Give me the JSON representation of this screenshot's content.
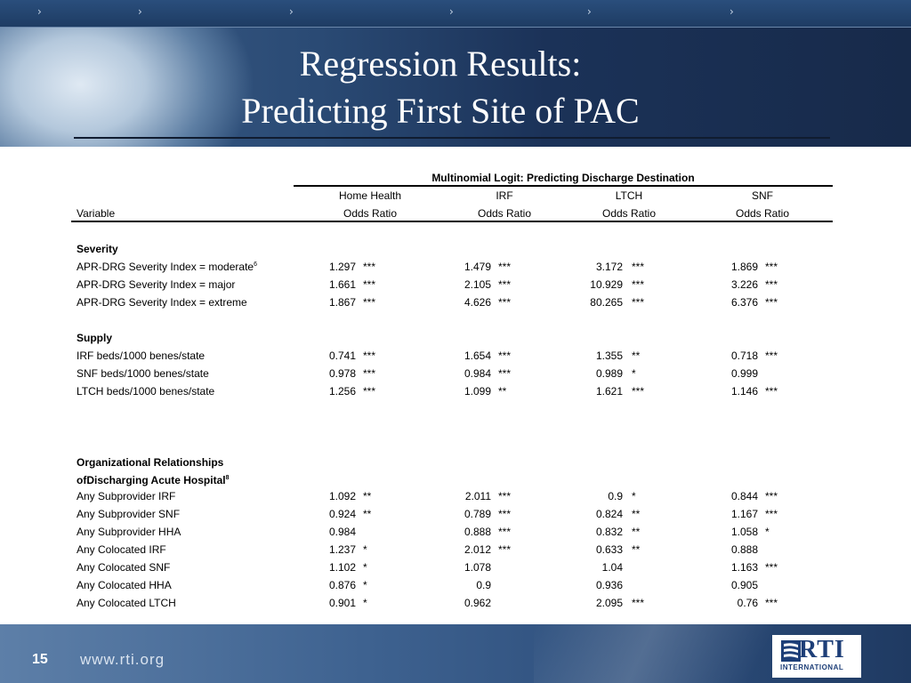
{
  "slide": {
    "title_line1": "Regression Results:",
    "title_line2": "Predicting First Site of PAC",
    "page_number": "15",
    "url": "www.rti.org"
  },
  "logo": {
    "name": "RTI",
    "sub": "INTERNATIONAL",
    "colors": {
      "brand": "#1e3f78"
    }
  },
  "nav": {
    "chevron_count": 6,
    "icon": "chevron-right-icon"
  },
  "table": {
    "top_header": "Multinomial Logit: Predicting Discharge Destination",
    "columns": [
      "Home Health",
      "IRF",
      "LTCH",
      "SNF"
    ],
    "variable_header": "Variable",
    "measure_header": "Odds Ratio",
    "sections": [
      {
        "heading": "Severity",
        "heading2": "",
        "heading2_sup": "",
        "rows": [
          {
            "label": "APR-DRG Severity Index = moderate",
            "sup": "6",
            "cells": [
              [
                "1.297",
                "***"
              ],
              [
                "1.479",
                "***"
              ],
              [
                "3.172",
                "***"
              ],
              [
                "1.869",
                "***"
              ]
            ]
          },
          {
            "label": "APR-DRG Severity Index = major",
            "sup": "",
            "cells": [
              [
                "1.661",
                "***"
              ],
              [
                "2.105",
                "***"
              ],
              [
                "10.929",
                "***"
              ],
              [
                "3.226",
                "***"
              ]
            ]
          },
          {
            "label": "APR-DRG Severity Index = extreme",
            "sup": "",
            "cells": [
              [
                "1.867",
                "***"
              ],
              [
                "4.626",
                "***"
              ],
              [
                "80.265",
                "***"
              ],
              [
                "6.376",
                "***"
              ]
            ]
          }
        ]
      },
      {
        "heading": "Supply",
        "heading2": "",
        "heading2_sup": "",
        "rows": [
          {
            "label": "IRF beds/1000 benes/state",
            "sup": "",
            "cells": [
              [
                "0.741",
                "***"
              ],
              [
                "1.654",
                "***"
              ],
              [
                "1.355",
                "**"
              ],
              [
                "0.718",
                "***"
              ]
            ]
          },
          {
            "label": "SNF beds/1000 benes/state",
            "sup": "",
            "cells": [
              [
                "0.978",
                "***"
              ],
              [
                "0.984",
                "***"
              ],
              [
                "0.989",
                "*"
              ],
              [
                "0.999",
                ""
              ]
            ]
          },
          {
            "label": "LTCH beds/1000 benes/state",
            "sup": "",
            "cells": [
              [
                "1.256",
                "***"
              ],
              [
                "1.099",
                "**"
              ],
              [
                "1.621",
                "***"
              ],
              [
                "1.146",
                "***"
              ]
            ]
          }
        ]
      },
      {
        "heading": "Organizational Relationships",
        "heading2": "ofDischarging Acute Hospital",
        "heading2_sup": "8",
        "rows": [
          {
            "label": "Any Subprovider IRF",
            "sup": "",
            "cells": [
              [
                "1.092",
                "**"
              ],
              [
                "2.011",
                "***"
              ],
              [
                "0.9",
                "*"
              ],
              [
                "0.844",
                "***"
              ]
            ]
          },
          {
            "label": "Any Subprovider SNF",
            "sup": "",
            "cells": [
              [
                "0.924",
                "**"
              ],
              [
                "0.789",
                "***"
              ],
              [
                "0.824",
                "**"
              ],
              [
                "1.167",
                "***"
              ]
            ]
          },
          {
            "label": "Any Subprovider HHA",
            "sup": "",
            "cells": [
              [
                "0.984",
                ""
              ],
              [
                "0.888",
                "***"
              ],
              [
                "0.832",
                "**"
              ],
              [
                "1.058",
                "*"
              ]
            ]
          },
          {
            "label": "Any Colocated IRF",
            "sup": "",
            "cells": [
              [
                "1.237",
                "*"
              ],
              [
                "2.012",
                "***"
              ],
              [
                "0.633",
                "**"
              ],
              [
                "0.888",
                ""
              ]
            ]
          },
          {
            "label": "Any Colocated SNF",
            "sup": "",
            "cells": [
              [
                "1.102",
                "*"
              ],
              [
                "1.078",
                ""
              ],
              [
                "1.04",
                ""
              ],
              [
                "1.163",
                "***"
              ]
            ]
          },
          {
            "label": "Any Colocated HHA",
            "sup": "",
            "cells": [
              [
                "0.876",
                "*"
              ],
              [
                "0.9",
                ""
              ],
              [
                "0.936",
                ""
              ],
              [
                "0.905",
                ""
              ]
            ]
          },
          {
            "label": "Any Colocated LTCH",
            "sup": "",
            "cells": [
              [
                "0.901",
                "*"
              ],
              [
                "0.962",
                ""
              ],
              [
                "2.095",
                "***"
              ],
              [
                "0.76",
                "***"
              ]
            ]
          }
        ]
      }
    ]
  }
}
